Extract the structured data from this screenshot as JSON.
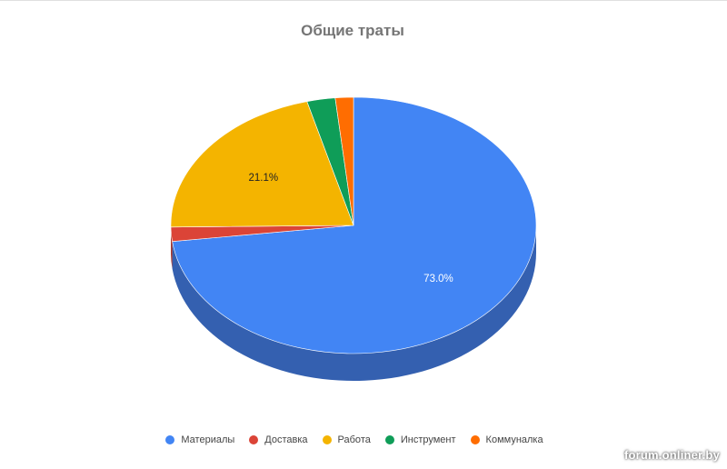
{
  "watermark": "forum.onliner.by",
  "chart_data": {
    "type": "pie",
    "title": "Общие траты",
    "style": "3d",
    "legend_position": "bottom",
    "slices": [
      {
        "label": "Материалы",
        "value": 73.0,
        "color": "#4285f4",
        "side_color": "#3460b0",
        "display": "73.0%",
        "label_color": "#ffffff"
      },
      {
        "label": "Доставка",
        "value": 1.8,
        "color": "#db4437",
        "side_color": "#a8342b",
        "display": "",
        "label_color": "#ffffff"
      },
      {
        "label": "Работа",
        "value": 21.1,
        "color": "#f4b400",
        "side_color": "#b88800",
        "display": "21.1%",
        "label_color": "#222222"
      },
      {
        "label": "Инструмент",
        "value": 2.5,
        "color": "#0f9d58",
        "side_color": "#0b7542",
        "display": "",
        "label_color": "#ffffff"
      },
      {
        "label": "Коммуналка",
        "value": 1.6,
        "color": "#ff6d01",
        "side_color": "#c05200",
        "display": "",
        "label_color": "#ffffff"
      }
    ]
  }
}
